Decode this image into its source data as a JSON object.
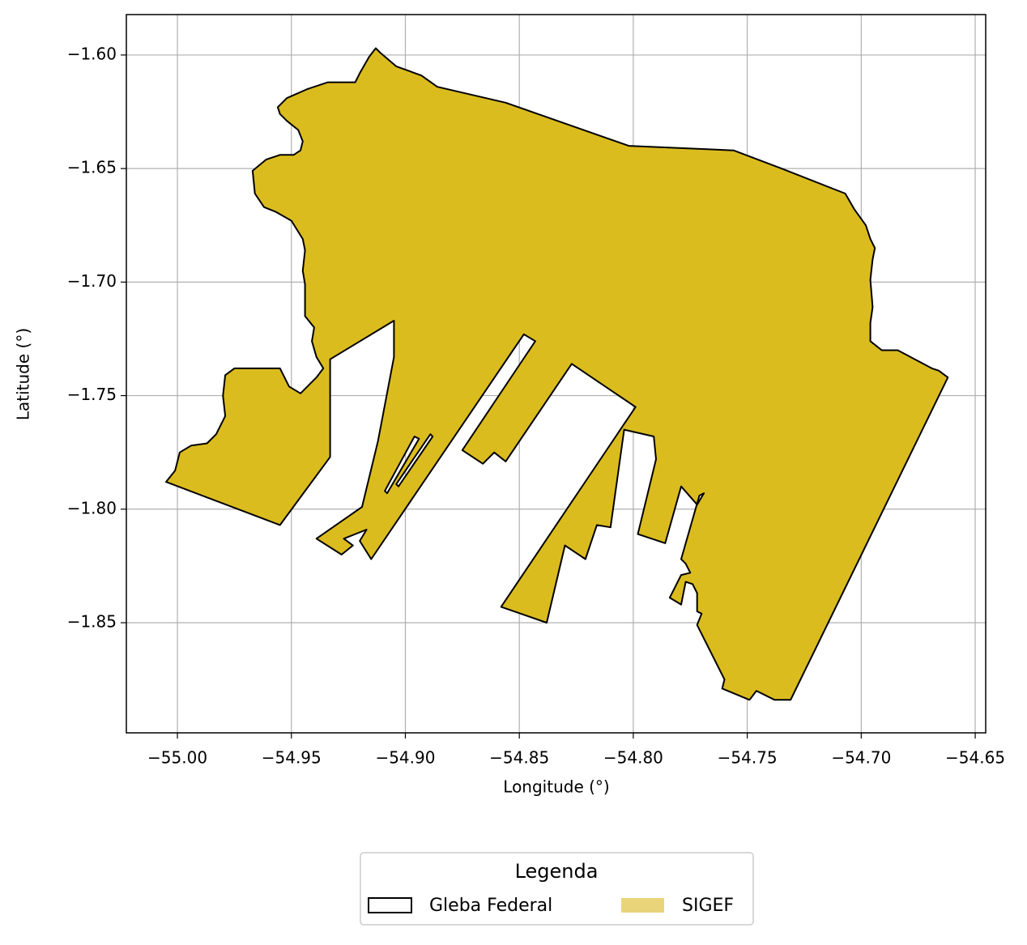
{
  "chart_data": {
    "type": "map",
    "xlabel": "Longitude (°)",
    "ylabel": "Latitude (°)",
    "xlim": [
      -55.0224,
      -54.6454
    ],
    "ylim": [
      -1.8985,
      -1.5822
    ],
    "xticks": [
      {
        "value": -55.0,
        "label": "−55.00"
      },
      {
        "value": -54.95,
        "label": "−54.95"
      },
      {
        "value": -54.9,
        "label": "−54.90"
      },
      {
        "value": -54.85,
        "label": "−54.85"
      },
      {
        "value": -54.8,
        "label": "−54.80"
      },
      {
        "value": -54.75,
        "label": "−54.75"
      },
      {
        "value": -54.7,
        "label": "−54.70"
      },
      {
        "value": -54.65,
        "label": "−54.65"
      }
    ],
    "yticks": [
      {
        "value": -1.6,
        "label": "−1.60"
      },
      {
        "value": -1.65,
        "label": "−1.65"
      },
      {
        "value": -1.7,
        "label": "−1.70"
      },
      {
        "value": -1.75,
        "label": "−1.75"
      },
      {
        "value": -1.8,
        "label": "−1.80"
      },
      {
        "value": -1.85,
        "label": "−1.85"
      }
    ],
    "grid": true,
    "legend_title": "Legenda",
    "legend_position": "bottom",
    "series": [
      {
        "name": "Gleba Federal",
        "color": "#ffffff",
        "edgecolor": "#000000"
      },
      {
        "name": "SIGEF",
        "color": "#dbbc1f",
        "legend_color": "#e9d47a"
      }
    ],
    "rings": [
      {
        "lon": [
          -55.005,
          -55.001,
          -54.999,
          -54.994,
          -54.987,
          -54.983,
          -54.979,
          -54.98,
          -54.979,
          -54.975,
          -54.955,
          -54.953,
          -54.951,
          -54.946,
          -54.943,
          -54.939,
          -54.936,
          -54.939,
          -54.941,
          -54.94,
          -54.944,
          -54.944,
          -54.944,
          -54.945,
          -54.944,
          -54.945,
          -54.95,
          -54.957,
          -54.962,
          -54.966,
          -54.967,
          -54.961,
          -54.955,
          -54.949,
          -54.946,
          -54.945,
          -54.947,
          -54.952,
          -54.955,
          -54.956,
          -54.952,
          -54.943,
          -54.934,
          -54.922,
          -54.92,
          -54.916,
          -54.913,
          -54.911,
          -54.904,
          -54.893,
          -54.886,
          -54.856,
          -54.802,
          -54.756,
          -54.735,
          -54.707,
          -54.703,
          -54.698,
          -54.696,
          -54.694,
          -54.695,
          -54.696,
          -54.695,
          -54.696,
          -54.696,
          -54.691,
          -54.684,
          -54.669,
          -54.666,
          -54.662,
          -54.731,
          -54.738,
          -54.746,
          -54.749,
          -54.761,
          -54.76,
          -54.772,
          -54.77,
          -54.772,
          -54.772,
          -54.774,
          -54.777,
          -54.779,
          -54.784,
          -54.779,
          -54.775,
          -54.777,
          -54.779,
          -54.771,
          -54.769,
          -54.772,
          -54.779,
          -54.786,
          -54.798,
          -54.79,
          -54.791,
          -54.804,
          -54.81,
          -54.816,
          -54.821,
          -54.83,
          -54.838,
          -54.858,
          -54.799,
          -54.827,
          -54.856,
          -54.861,
          -54.866,
          -54.875,
          -54.843,
          -54.848,
          -54.915,
          -54.92,
          -54.917,
          -54.927,
          -54.923,
          -54.928,
          -54.939,
          -54.919,
          -54.912,
          -54.905,
          -54.905,
          -54.933,
          -54.933,
          -54.955
        ],
        "lat": [
          -1.788,
          -1.783,
          -1.775,
          -1.772,
          -1.771,
          -1.767,
          -1.759,
          -1.75,
          -1.741,
          -1.738,
          -1.738,
          -1.742,
          -1.746,
          -1.749,
          -1.746,
          -1.742,
          -1.738,
          -1.733,
          -1.726,
          -1.72,
          -1.715,
          -1.709,
          -1.701,
          -1.695,
          -1.686,
          -1.681,
          -1.673,
          -1.669,
          -1.667,
          -1.661,
          -1.651,
          -1.646,
          -1.644,
          -1.644,
          -1.642,
          -1.638,
          -1.633,
          -1.629,
          -1.626,
          -1.623,
          -1.619,
          -1.615,
          -1.612,
          -1.612,
          -1.608,
          -1.601,
          -1.597,
          -1.599,
          -1.605,
          -1.609,
          -1.614,
          -1.621,
          -1.64,
          -1.642,
          -1.65,
          -1.661,
          -1.668,
          -1.675,
          -1.681,
          -1.685,
          -1.69,
          -1.699,
          -1.711,
          -1.718,
          -1.726,
          -1.73,
          -1.73,
          -1.738,
          -1.739,
          -1.742,
          -1.884,
          -1.884,
          -1.88,
          -1.884,
          -1.879,
          -1.875,
          -1.851,
          -1.846,
          -1.845,
          -1.837,
          -1.833,
          -1.832,
          -1.842,
          -1.839,
          -1.829,
          -1.828,
          -1.824,
          -1.822,
          -1.794,
          -1.793,
          -1.798,
          -1.79,
          -1.815,
          -1.811,
          -1.778,
          -1.768,
          -1.765,
          -1.808,
          -1.807,
          -1.822,
          -1.816,
          -1.85,
          -1.843,
          -1.755,
          -1.736,
          -1.779,
          -1.775,
          -1.78,
          -1.774,
          -1.726,
          -1.723,
          -1.822,
          -1.814,
          -1.809,
          -1.813,
          -1.816,
          -1.82,
          -1.813,
          -1.799,
          -1.77,
          -1.733,
          -1.717,
          -1.734,
          -1.777,
          -1.807
        ]
      },
      {
        "lon": [
          -54.909,
          -54.896,
          -54.894,
          -54.908
        ],
        "lat": [
          -1.792,
          -1.768,
          -1.769,
          -1.793
        ]
      },
      {
        "lon": [
          -54.904,
          -54.889,
          -54.888,
          -54.903
        ],
        "lat": [
          -1.789,
          -1.767,
          -1.768,
          -1.79
        ]
      }
    ]
  }
}
